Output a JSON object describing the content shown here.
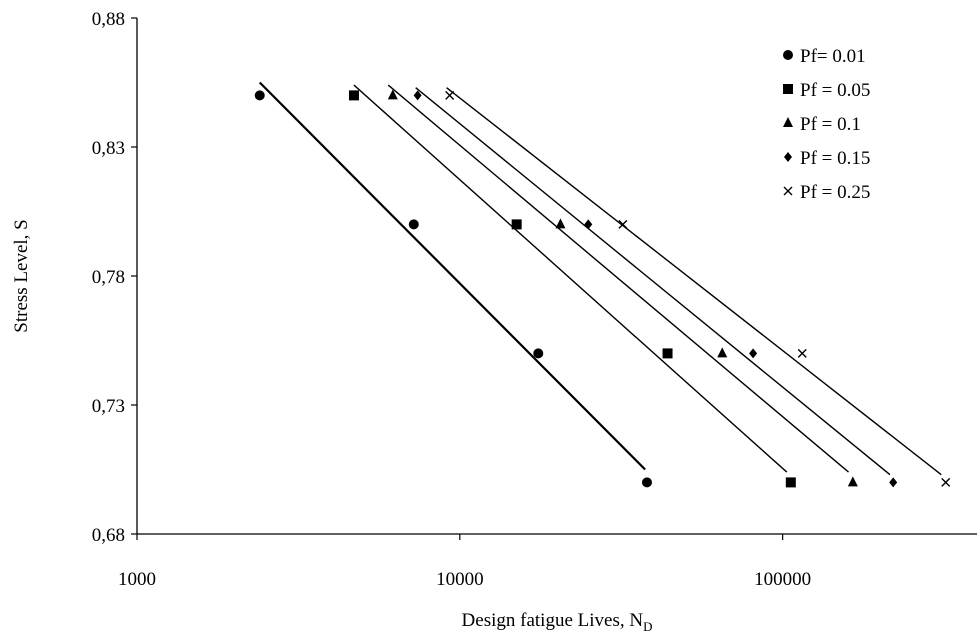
{
  "chart_data": {
    "type": "scatter",
    "xlabel": "Design fatigue Lives, N",
    "xlabel_sub": "D",
    "ylabel": "Stress Level, S",
    "x_scale": "log",
    "xlim": [
      1000,
      400000
    ],
    "ylim": [
      0.68,
      0.88
    ],
    "x_ticks": [
      1000,
      10000,
      100000
    ],
    "x_tick_labels": [
      "1000",
      "10000",
      "100000"
    ],
    "y_ticks": [
      0.68,
      0.73,
      0.78,
      0.83,
      0.88
    ],
    "y_tick_labels": [
      "0,68",
      "0,73",
      "0,78",
      "0,83",
      "0,88"
    ],
    "grid": false,
    "legend_position": "top-right",
    "series": [
      {
        "name": "Pf= 0.01",
        "marker": "circle",
        "x": [
          2400,
          7200,
          17500,
          38000
        ],
        "y": [
          0.85,
          0.8,
          0.75,
          0.7
        ],
        "fit": {
          "x": [
            2400,
            37500
          ],
          "y": [
            0.855,
            0.705
          ]
        }
      },
      {
        "name": "Pf = 0.05",
        "marker": "square",
        "x": [
          4700,
          15000,
          44000,
          106000
        ],
        "y": [
          0.85,
          0.8,
          0.75,
          0.7
        ],
        "fit": {
          "x": [
            4700,
            103000
          ],
          "y": [
            0.854,
            0.704
          ]
        }
      },
      {
        "name": "Pf = 0.1",
        "marker": "triangle",
        "x": [
          6200,
          20500,
          65000,
          165000
        ],
        "y": [
          0.85,
          0.8,
          0.75,
          0.7
        ],
        "fit": {
          "x": [
            6000,
            160000
          ],
          "y": [
            0.854,
            0.704
          ]
        }
      },
      {
        "name": "Pf = 0.15",
        "marker": "diamond",
        "x": [
          7400,
          25000,
          81000,
          220000
        ],
        "y": [
          0.85,
          0.8,
          0.75,
          0.7
        ],
        "fit": {
          "x": [
            7300,
            215000
          ],
          "y": [
            0.853,
            0.703
          ]
        }
      },
      {
        "name": "Pf = 0.25",
        "marker": "x",
        "x": [
          9300,
          32000,
          115000,
          320000
        ],
        "y": [
          0.85,
          0.8,
          0.75,
          0.7
        ],
        "fit": {
          "x": [
            9100,
            310000
          ],
          "y": [
            0.853,
            0.703
          ]
        }
      }
    ]
  }
}
